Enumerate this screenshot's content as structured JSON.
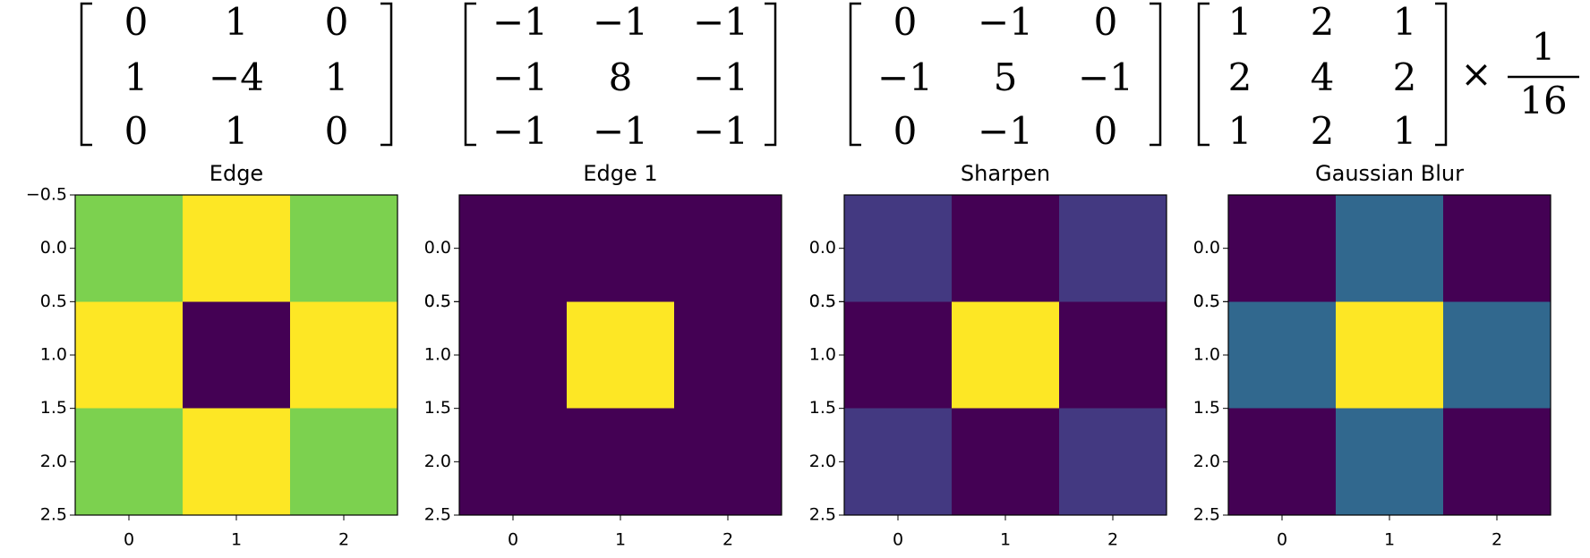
{
  "chart_data": [
    {
      "type": "heatmap",
      "title": "Edge",
      "colormap": "viridis",
      "values": [
        [
          0,
          1,
          0
        ],
        [
          1,
          -4,
          1
        ],
        [
          0,
          1,
          0
        ]
      ],
      "value_labels": [
        [
          "0",
          "1",
          "0"
        ],
        [
          "1",
          "−4",
          "1"
        ],
        [
          "0",
          "1",
          "0"
        ]
      ],
      "xlim": [
        -0.5,
        2.5
      ],
      "xticks": [
        0,
        1,
        2
      ],
      "ylim": [
        2.5,
        -0.5
      ],
      "yticks": [
        {
          "value": -0.5,
          "label": "−0.5"
        },
        {
          "value": 0,
          "label": "0.0"
        },
        0.5,
        {
          "value": 1,
          "label": "1.0"
        },
        1.5,
        {
          "value": 2,
          "label": "2.0"
        },
        2.5
      ]
    },
    {
      "type": "heatmap",
      "title": "Edge 1",
      "colormap": "viridis",
      "values": [
        [
          -1,
          -1,
          -1
        ],
        [
          -1,
          8,
          -1
        ],
        [
          -1,
          -1,
          -1
        ]
      ],
      "value_labels": [
        [
          "−1",
          "−1",
          "−1"
        ],
        [
          "−1",
          "8",
          "−1"
        ],
        [
          "−1",
          "−1",
          "−1"
        ]
      ],
      "xlim": [
        -0.5,
        2.5
      ],
      "xticks": [
        0,
        1,
        2
      ],
      "ylim": [
        2.5,
        -0.5
      ],
      "yticks": [
        0.5,
        {
          "value": 0,
          "label": "0.0"
        },
        0.5,
        {
          "value": 1,
          "label": "1.0"
        },
        1.5,
        {
          "value": 2,
          "label": "2.0"
        },
        2.5
      ]
    },
    {
      "type": "heatmap",
      "title": "Sharpen",
      "colormap": "viridis",
      "values": [
        [
          0,
          -1,
          0
        ],
        [
          -1,
          5,
          -1
        ],
        [
          0,
          -1,
          0
        ]
      ],
      "value_labels": [
        [
          "0",
          "−1",
          "0"
        ],
        [
          "−1",
          "5",
          "−1"
        ],
        [
          "0",
          "−1",
          "0"
        ]
      ],
      "xlim": [
        -0.5,
        2.5
      ],
      "xticks": [
        0,
        1,
        2
      ],
      "ylim": [
        2.5,
        -0.5
      ],
      "yticks": [
        0.5,
        {
          "value": 0,
          "label": "0.0"
        },
        0.5,
        {
          "value": 1,
          "label": "1.0"
        },
        1.5,
        {
          "value": 2,
          "label": "2.0"
        },
        2.5
      ]
    },
    {
      "type": "heatmap",
      "title": "Gaussian Blur",
      "colormap": "viridis",
      "values": [
        [
          1,
          2,
          1
        ],
        [
          2,
          4,
          2
        ],
        [
          1,
          2,
          1
        ]
      ],
      "value_labels": [
        [
          "1",
          "2",
          "1"
        ],
        [
          "2",
          "4",
          "2"
        ],
        [
          "1",
          "2",
          "1"
        ]
      ],
      "factor": {
        "operator": "×",
        "numerator": "1",
        "denominator": "16"
      },
      "xlim": [
        -0.5,
        2.5
      ],
      "xticks": [
        0,
        1,
        2
      ],
      "ylim": [
        2.5,
        -0.5
      ],
      "yticks": [
        0.5,
        {
          "value": 0,
          "label": "0.0"
        },
        0.5,
        {
          "value": 1,
          "label": "1.0"
        },
        1.5,
        {
          "value": 2,
          "label": "2.0"
        },
        2.5
      ]
    }
  ]
}
